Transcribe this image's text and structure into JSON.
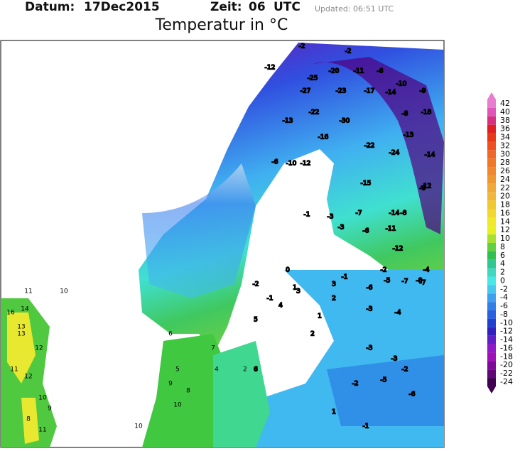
{
  "header": {
    "date_label": "Datum:",
    "date": "17Dec2015",
    "time_label": "Zeit:",
    "time": "06",
    "time_unit": "UTC",
    "updated": "Updated: 06:51 UTC"
  },
  "title": "Temperatur in °C",
  "colorbar": {
    "ticks": [
      42,
      40,
      38,
      36,
      34,
      32,
      30,
      28,
      26,
      24,
      22,
      20,
      18,
      16,
      14,
      12,
      10,
      8,
      6,
      4,
      2,
      0,
      -2,
      -4,
      -6,
      -8,
      -10,
      -12,
      -14,
      -16,
      -18,
      -20,
      -22,
      -24
    ],
    "colors": [
      "#e87ccf",
      "#e055b8",
      "#d83080",
      "#e02020",
      "#e83818",
      "#f05020",
      "#f06828",
      "#f07828",
      "#f08830",
      "#f09830",
      "#f0a838",
      "#f0b838",
      "#f0c830",
      "#f0d830",
      "#f0e828",
      "#e8f020",
      "#a8e030",
      "#60d040",
      "#30c050",
      "#30c890",
      "#40d8c0",
      "#48e8e8",
      "#48c8f0",
      "#40a0f0",
      "#3080e8",
      "#2860e0",
      "#2040d0",
      "#3020c0",
      "#6020c8",
      "#9018c8",
      "#a010b8",
      "#800898",
      "#600878",
      "#400050"
    ]
  },
  "stations": [
    -2,
    -2,
    -12,
    -25,
    -20,
    -11,
    -6,
    -10,
    -9,
    -27,
    -23,
    -17,
    -14,
    -13,
    -22,
    -30,
    -8,
    -18,
    -22,
    -24,
    -14,
    -13,
    -16,
    -10,
    -12,
    -6,
    -15,
    -9,
    -12,
    -8,
    -1,
    -3,
    -7,
    -14,
    -11,
    -6,
    -12,
    -3,
    -2,
    -4,
    -5,
    -7,
    -8,
    -6,
    -1,
    0,
    3,
    2,
    1,
    -2,
    -1,
    -3,
    -4,
    -3,
    -2,
    -5,
    -6,
    -7,
    7,
    5,
    6,
    4,
    2,
    9,
    10,
    8,
    11,
    13,
    16,
    14,
    13,
    12,
    11,
    12,
    10,
    9,
    8,
    11,
    10,
    10,
    3,
    4,
    1,
    2,
    5,
    6,
    -3,
    -2,
    1,
    -1
  ]
}
